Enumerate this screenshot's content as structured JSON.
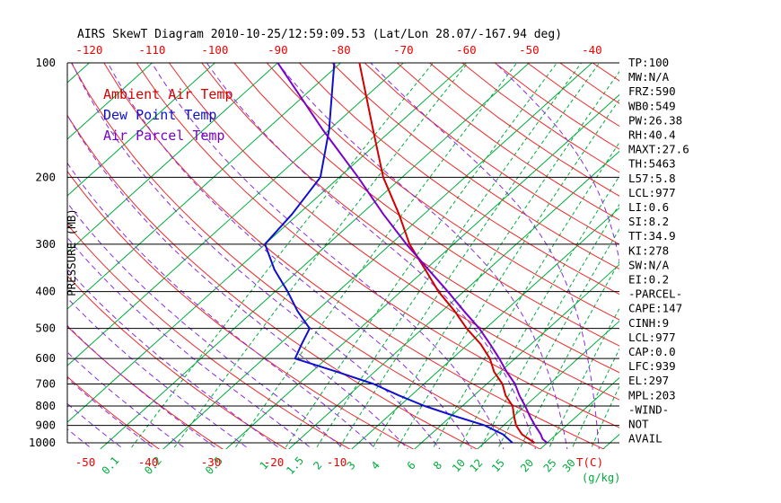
{
  "header": {
    "title": "AIRS SkewT Diagram 2010-10-25/12:59:09.53 (Lat/Lon 28.07/-167.94 deg)"
  },
  "colors": {
    "ambient": "#d40000",
    "dewpoint": "#0f0fd0",
    "parcel": "#7a00cc",
    "isotherm_green": "#00ac3c",
    "dry_adiabat_red": "#ee2a2a",
    "moist_adiabat_violet": "#8a2be2",
    "tick_red": "#ee0000",
    "axis_black": "#000000"
  },
  "y_axis": {
    "label": "PRESSURE (MB)",
    "ticks": [
      100,
      200,
      300,
      400,
      500,
      600,
      700,
      800,
      900,
      1000
    ]
  },
  "x_axis_top": {
    "ticks": [
      -120,
      -110,
      -100,
      -90,
      -80,
      -70,
      -60,
      -50,
      -40
    ]
  },
  "x_axis_bottom": {
    "temp_ticks": [
      -50,
      -40,
      -30,
      -20,
      -10
    ],
    "temp_unit": "T(C)",
    "mix_unit": "(g/kg)"
  },
  "legend": [
    {
      "label": "Ambient Air Temp",
      "color": "#d40000"
    },
    {
      "label": "Dew Point Temp",
      "color": "#0f0fd0"
    },
    {
      "label": "Air Parcel Temp",
      "color": "#7a00cc"
    }
  ],
  "side_panel": [
    "TP:100",
    "MW:N/A",
    "FRZ:590",
    "WB0:549",
    "PW:26.38",
    "RH:40.4",
    "MAXT:27.6",
    "TH:5463",
    "L57:5.8",
    "LCL:977",
    "LI:0.6",
    "SI:8.2",
    "TT:34.9",
    "KI:278",
    "SW:N/A",
    "EI:0.2",
    "-PARCEL-",
    "CAPE:147",
    "CINH:9",
    "LCL:977",
    "CAP:0.0",
    "LFC:939",
    "EL:297",
    "MPL:203",
    "-WIND-",
    "NOT",
    "AVAIL"
  ],
  "chart_data": {
    "type": "line",
    "title": "AIRS SkewT Diagram 2010-10-25/12:59:09.53 (Lat/Lon 28.07/-167.94 deg)",
    "xlabel": "Temperature (C, skewed)",
    "ylabel": "Pressure (MB, log inverted)",
    "y_range_mb": [
      100,
      1050
    ],
    "x_ticks_top_c": [
      -120,
      -110,
      -100,
      -90,
      -80,
      -70,
      -60,
      -50,
      -40
    ],
    "x_ticks_bottom_c": [
      -50,
      -40,
      -30,
      -20,
      -10
    ],
    "grid": {
      "isotherms_c": {
        "min": -120,
        "max": 30,
        "step": 10
      },
      "dry_adiabats_k": {
        "min": 230,
        "max": 460,
        "step": 10
      },
      "moist_adiabats_c": {
        "min": -55,
        "max": 35,
        "step": 5
      },
      "mixing_ratio_g_kg": [
        0.1,
        0.2,
        0.5,
        1,
        1.5,
        2,
        3,
        4,
        6,
        8,
        10,
        12,
        15,
        20,
        25,
        30
      ]
    },
    "series": [
      {
        "name": "Ambient Air Temp",
        "color": "#d40000",
        "pressure_mb": [
          1000,
          950,
          900,
          850,
          800,
          750,
          700,
          650,
          600,
          550,
          500,
          450,
          400,
          350,
          300,
          250,
          200,
          150,
          100
        ],
        "temp_c": [
          18,
          14.5,
          12,
          10,
          8,
          5,
          2.5,
          -1,
          -4,
          -8,
          -13,
          -18,
          -24,
          -30,
          -37,
          -44,
          -53,
          -63,
          -77
        ]
      },
      {
        "name": "Dew Point Temp",
        "color": "#0f0fd0",
        "pressure_mb": [
          1000,
          950,
          900,
          850,
          800,
          750,
          700,
          650,
          600,
          550,
          500,
          450,
          400,
          350,
          300,
          250,
          200,
          150,
          100
        ],
        "temp_c": [
          14.5,
          11.5,
          7,
          0.5,
          -6,
          -12,
          -18,
          -26,
          -35,
          -36.5,
          -38,
          -43,
          -48,
          -54,
          -60,
          -61,
          -63,
          -70,
          -81
        ]
      },
      {
        "name": "Air Parcel Temp",
        "color": "#7a00cc",
        "pressure_mb": [
          1000,
          977,
          950,
          900,
          850,
          800,
          750,
          700,
          650,
          600,
          550,
          500,
          450,
          400,
          350,
          300,
          250,
          200,
          150,
          100
        ],
        "temp_c": [
          20,
          18.6,
          17.5,
          15,
          12.5,
          10,
          7.2,
          4.5,
          1,
          -2.5,
          -6.5,
          -11,
          -16.5,
          -22.5,
          -29.5,
          -37.5,
          -46.5,
          -57,
          -71,
          -90
        ]
      }
    ]
  }
}
